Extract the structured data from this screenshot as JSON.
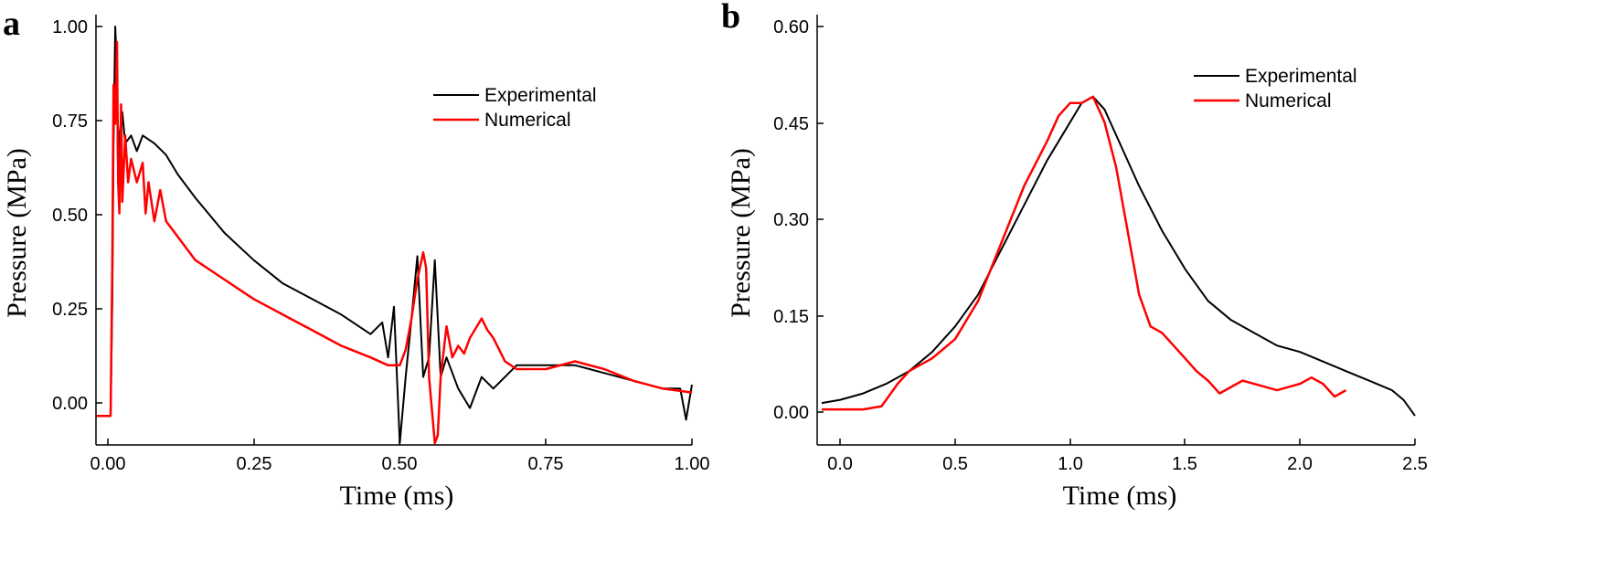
{
  "colors": {
    "experimental": "#000000",
    "numerical": "#ff0000"
  },
  "chart_data": [
    {
      "type": "line",
      "panel_label": "a",
      "xlabel": "Time (ms)",
      "ylabel": "Pressure (MPa)",
      "xlim": [
        -0.02,
        1.0
      ],
      "ylim": [
        -0.07,
        1.0
      ],
      "xticks": [
        "0.00",
        "0.25",
        "0.50",
        "0.75",
        "1.00"
      ],
      "yticks": [
        "0.00",
        "0.25",
        "0.50",
        "0.75",
        "1.00"
      ],
      "grid": false,
      "legend_position": "top-right",
      "series": [
        {
          "name": "Experimental",
          "color": "#000000",
          "x": [
            -0.02,
            0.005,
            0.008,
            0.01,
            0.013,
            0.015,
            0.018,
            0.02,
            0.025,
            0.03,
            0.04,
            0.05,
            0.06,
            0.08,
            0.1,
            0.12,
            0.15,
            0.2,
            0.25,
            0.3,
            0.35,
            0.4,
            0.45,
            0.47,
            0.48,
            0.49,
            0.5,
            0.51,
            0.52,
            0.53,
            0.54,
            0.55,
            0.56,
            0.57,
            0.58,
            0.6,
            0.62,
            0.64,
            0.66,
            0.7,
            0.75,
            0.8,
            0.85,
            0.9,
            0.95,
            0.98,
            0.99,
            1.0
          ],
          "y": [
            0.0,
            0.0,
            0.3,
            0.7,
            1.0,
            0.92,
            0.6,
            0.72,
            0.78,
            0.7,
            0.72,
            0.68,
            0.72,
            0.7,
            0.67,
            0.62,
            0.56,
            0.47,
            0.4,
            0.34,
            0.3,
            0.26,
            0.21,
            0.24,
            0.15,
            0.28,
            -0.07,
            0.1,
            0.25,
            0.41,
            0.1,
            0.15,
            0.4,
            0.1,
            0.15,
            0.07,
            0.02,
            0.1,
            0.07,
            0.13,
            0.13,
            0.13,
            0.11,
            0.09,
            0.07,
            0.07,
            -0.01,
            0.08
          ]
        },
        {
          "name": "Numerical",
          "color": "#ff0000",
          "x": [
            -0.02,
            0.005,
            0.008,
            0.01,
            0.013,
            0.016,
            0.018,
            0.02,
            0.023,
            0.025,
            0.03,
            0.035,
            0.04,
            0.05,
            0.06,
            0.065,
            0.07,
            0.08,
            0.09,
            0.1,
            0.12,
            0.15,
            0.2,
            0.25,
            0.3,
            0.35,
            0.4,
            0.45,
            0.48,
            0.5,
            0.51,
            0.52,
            0.53,
            0.54,
            0.545,
            0.55,
            0.56,
            0.565,
            0.57,
            0.58,
            0.59,
            0.6,
            0.61,
            0.62,
            0.64,
            0.65,
            0.66,
            0.68,
            0.7,
            0.75,
            0.8,
            0.85,
            0.9,
            0.95,
            1.0
          ],
          "y": [
            0.0,
            0.0,
            0.4,
            0.85,
            0.75,
            0.96,
            0.6,
            0.52,
            0.8,
            0.55,
            0.72,
            0.6,
            0.66,
            0.6,
            0.65,
            0.52,
            0.6,
            0.5,
            0.58,
            0.5,
            0.46,
            0.4,
            0.35,
            0.3,
            0.26,
            0.22,
            0.18,
            0.15,
            0.13,
            0.13,
            0.17,
            0.25,
            0.35,
            0.42,
            0.38,
            0.1,
            -0.07,
            -0.05,
            0.1,
            0.23,
            0.15,
            0.18,
            0.16,
            0.2,
            0.25,
            0.22,
            0.2,
            0.14,
            0.12,
            0.12,
            0.14,
            0.12,
            0.09,
            0.07,
            0.06
          ]
        }
      ]
    },
    {
      "type": "line",
      "panel_label": "b",
      "xlabel": "Time (ms)",
      "ylabel": "Pressure (MPa)",
      "xlim": [
        -0.1,
        2.5
      ],
      "ylim": [
        -0.05,
        0.6
      ],
      "xticks": [
        "0.0",
        "0.5",
        "1.0",
        "1.5",
        "2.0",
        "2.5"
      ],
      "yticks": [
        "0.00",
        "0.15",
        "0.30",
        "0.45",
        "0.60"
      ],
      "grid": false,
      "legend_position": "top-right",
      "series": [
        {
          "name": "Experimental",
          "color": "#000000",
          "x": [
            -0.08,
            0.0,
            0.1,
            0.2,
            0.3,
            0.4,
            0.5,
            0.6,
            0.7,
            0.8,
            0.9,
            1.0,
            1.05,
            1.1,
            1.15,
            1.2,
            1.3,
            1.4,
            1.5,
            1.6,
            1.7,
            1.8,
            1.9,
            2.0,
            2.1,
            2.2,
            2.3,
            2.4,
            2.45,
            2.48,
            2.5
          ],
          "y": [
            0.01,
            0.015,
            0.025,
            0.04,
            0.06,
            0.09,
            0.13,
            0.18,
            0.25,
            0.32,
            0.39,
            0.45,
            0.48,
            0.49,
            0.47,
            0.43,
            0.35,
            0.28,
            0.22,
            0.17,
            0.14,
            0.12,
            0.1,
            0.09,
            0.075,
            0.06,
            0.045,
            0.03,
            0.015,
            0.0,
            -0.01
          ]
        },
        {
          "name": "Numerical",
          "color": "#ff0000",
          "x": [
            -0.08,
            0.1,
            0.18,
            0.2,
            0.25,
            0.3,
            0.4,
            0.5,
            0.6,
            0.7,
            0.8,
            0.9,
            0.95,
            1.0,
            1.05,
            1.1,
            1.15,
            1.2,
            1.25,
            1.3,
            1.35,
            1.4,
            1.45,
            1.5,
            1.55,
            1.6,
            1.65,
            1.7,
            1.75,
            1.8,
            1.9,
            2.0,
            2.05,
            2.1,
            2.15,
            2.2
          ],
          "y": [
            0.0,
            0.0,
            0.005,
            0.015,
            0.04,
            0.06,
            0.08,
            0.11,
            0.17,
            0.26,
            0.35,
            0.42,
            0.46,
            0.48,
            0.48,
            0.49,
            0.45,
            0.38,
            0.28,
            0.18,
            0.13,
            0.12,
            0.1,
            0.08,
            0.06,
            0.045,
            0.025,
            0.035,
            0.045,
            0.04,
            0.03,
            0.04,
            0.05,
            0.04,
            0.02,
            0.03
          ]
        }
      ]
    }
  ]
}
